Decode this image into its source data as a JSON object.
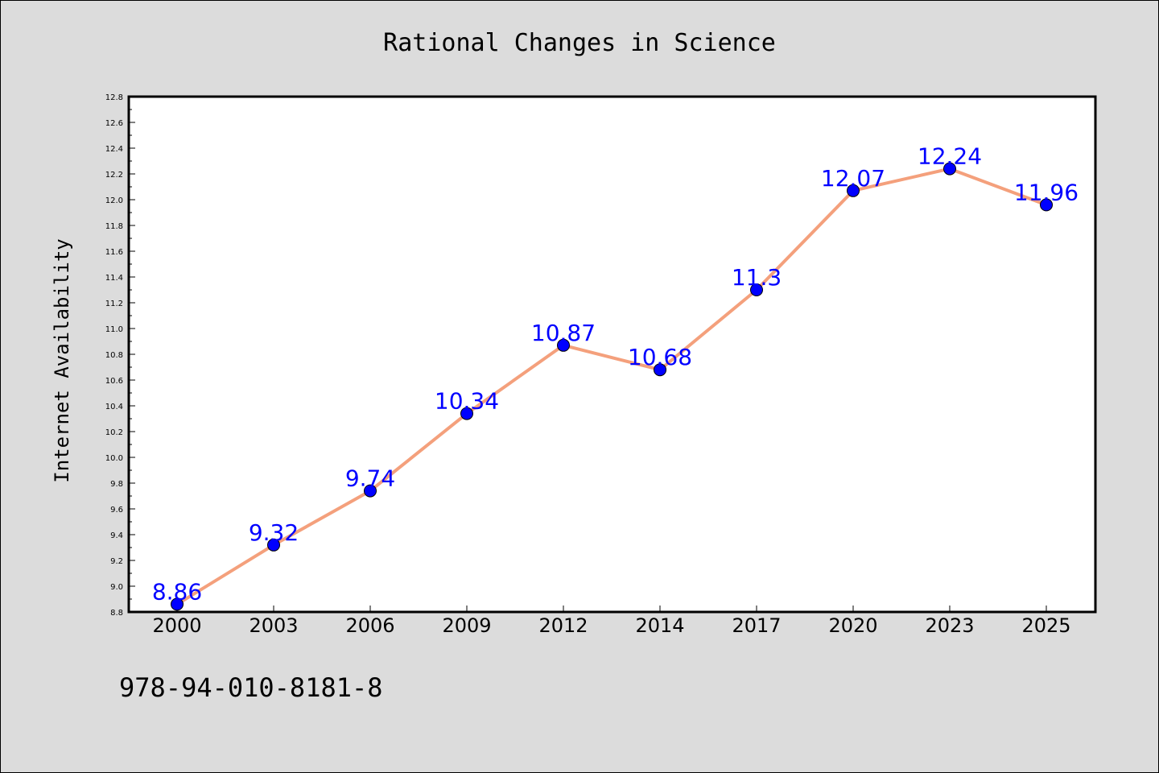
{
  "chart_data": {
    "type": "line",
    "title": "Rational Changes in Science",
    "xlabel": "",
    "ylabel": "Internet Availability",
    "categories": [
      "2000",
      "2003",
      "2006",
      "2009",
      "2012",
      "2014",
      "2017",
      "2020",
      "2023",
      "2025"
    ],
    "values": [
      8.86,
      9.32,
      9.74,
      10.34,
      10.87,
      10.68,
      11.3,
      12.07,
      12.24,
      11.96
    ],
    "data_labels": [
      "8.86",
      "9.32",
      "9.74",
      "10.34",
      "10.87",
      "10.68",
      "11.3",
      "12.07",
      "12.24",
      "11.96"
    ],
    "ylim": [
      8.8,
      12.8
    ],
    "yticks": [
      "8.8",
      "9.0",
      "9.2",
      "9.4",
      "9.6",
      "9.8",
      "10.0",
      "10.2",
      "10.4",
      "10.6",
      "10.8",
      "11.0",
      "11.2",
      "11.4",
      "11.6",
      "11.8",
      "12.0",
      "12.2",
      "12.4",
      "12.6",
      "12.8"
    ],
    "grid": false,
    "line_color": "#f4a07c",
    "marker_color": "#0000ff",
    "label_color": "#0000ff"
  },
  "footer": {
    "isbn": "978-94-010-8181-8"
  }
}
